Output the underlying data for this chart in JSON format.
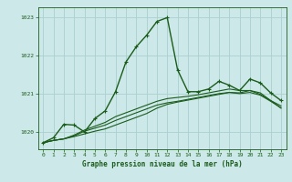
{
  "title": "Graphe pression niveau de la mer (hPa)",
  "background_color": "#cce8e8",
  "grid_color": "#aad0d0",
  "line_color": "#1a5c1a",
  "marker_color": "#1a5c1a",
  "xlim": [
    -0.5,
    23.5
  ],
  "ylim": [
    1019.55,
    1023.25
  ],
  "yticks": [
    1020,
    1021,
    1022,
    1023
  ],
  "xticks": [
    0,
    1,
    2,
    3,
    4,
    5,
    6,
    7,
    8,
    9,
    10,
    11,
    12,
    13,
    14,
    15,
    16,
    17,
    18,
    19,
    20,
    21,
    22,
    23
  ],
  "series": [
    {
      "x": [
        0,
        1,
        2,
        3,
        4,
        5,
        6,
        7,
        8,
        9,
        10,
        11,
        12,
        13,
        14,
        15,
        16,
        17,
        18,
        19,
        20,
        21,
        22,
        23
      ],
      "y": [
        1019.72,
        1019.85,
        1020.2,
        1020.18,
        1020.0,
        1020.35,
        1020.55,
        1021.05,
        1021.82,
        1022.22,
        1022.52,
        1022.88,
        1022.98,
        1021.62,
        1021.05,
        1021.05,
        1021.12,
        1021.32,
        1021.22,
        1021.08,
        1021.38,
        1021.28,
        1021.02,
        1020.82
      ],
      "marker": true,
      "linewidth": 1.0
    },
    {
      "x": [
        0,
        1,
        2,
        3,
        4,
        5,
        6,
        7,
        8,
        9,
        10,
        11,
        12,
        13,
        14,
        15,
        16,
        17,
        18,
        19,
        20,
        21,
        22,
        23
      ],
      "y": [
        1019.72,
        1019.78,
        1019.82,
        1019.88,
        1019.95,
        1020.02,
        1020.08,
        1020.18,
        1020.28,
        1020.38,
        1020.48,
        1020.62,
        1020.72,
        1020.78,
        1020.83,
        1020.88,
        1020.93,
        1020.98,
        1021.03,
        1021.02,
        1021.08,
        1021.02,
        1020.82,
        1020.68
      ],
      "marker": false,
      "linewidth": 0.8
    },
    {
      "x": [
        0,
        1,
        2,
        3,
        4,
        5,
        6,
        7,
        8,
        9,
        10,
        11,
        12,
        13,
        14,
        15,
        16,
        17,
        18,
        19,
        20,
        21,
        22,
        23
      ],
      "y": [
        1019.72,
        1019.78,
        1019.82,
        1019.92,
        1020.05,
        1020.15,
        1020.25,
        1020.4,
        1020.5,
        1020.6,
        1020.7,
        1020.8,
        1020.87,
        1020.9,
        1020.93,
        1020.97,
        1021.02,
        1021.07,
        1021.12,
        1021.08,
        1021.08,
        1020.98,
        1020.82,
        1020.62
      ],
      "marker": false,
      "linewidth": 0.8
    },
    {
      "x": [
        0,
        1,
        2,
        3,
        4,
        5,
        6,
        7,
        8,
        9,
        10,
        11,
        12,
        13,
        14,
        15,
        16,
        17,
        18,
        19,
        20,
        21,
        22,
        23
      ],
      "y": [
        1019.72,
        1019.78,
        1019.82,
        1019.9,
        1020.02,
        1020.1,
        1020.18,
        1020.3,
        1020.4,
        1020.5,
        1020.6,
        1020.7,
        1020.76,
        1020.8,
        1020.85,
        1020.9,
        1020.95,
        1021.0,
        1021.03,
        1021.0,
        1021.03,
        1020.96,
        1020.8,
        1020.63
      ],
      "marker": false,
      "linewidth": 0.8
    }
  ]
}
